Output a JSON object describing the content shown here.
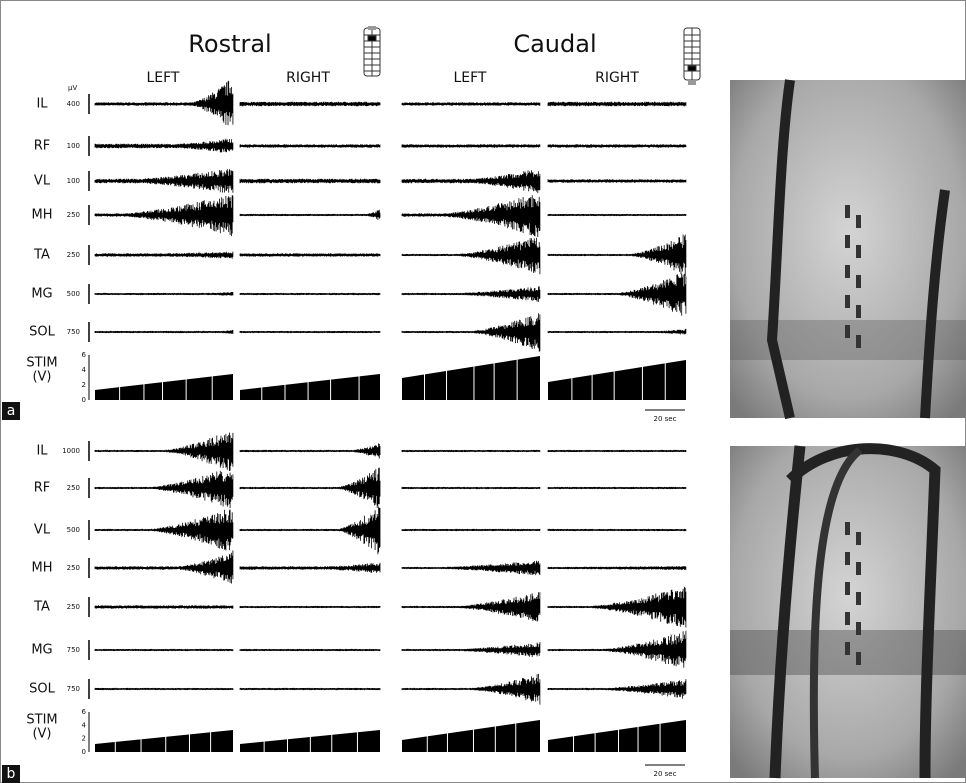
{
  "header": {
    "groups": [
      "Rostral",
      "Caudal"
    ],
    "sides": [
      "LEFT",
      "RIGHT",
      "LEFT",
      "RIGHT"
    ],
    "unit": "µV"
  },
  "panels": [
    {
      "label": "a",
      "rows": [
        {
          "muscle": "IL",
          "scale": "400"
        },
        {
          "muscle": "RF",
          "scale": "100"
        },
        {
          "muscle": "VL",
          "scale": "100"
        },
        {
          "muscle": "MH",
          "scale": "250"
        },
        {
          "muscle": "TA",
          "scale": "250"
        },
        {
          "muscle": "MG",
          "scale": "500"
        },
        {
          "muscle": "SOL",
          "scale": "750"
        }
      ],
      "stim": {
        "label": [
          "STIM",
          "(V)"
        ],
        "ticks": [
          "6",
          "4",
          "2",
          "0"
        ]
      },
      "time_scale": "20 sec"
    },
    {
      "label": "b",
      "rows": [
        {
          "muscle": "IL",
          "scale": "1000"
        },
        {
          "muscle": "RF",
          "scale": "250"
        },
        {
          "muscle": "VL",
          "scale": "500"
        },
        {
          "muscle": "MH",
          "scale": "250"
        },
        {
          "muscle": "TA",
          "scale": "250"
        },
        {
          "muscle": "MG",
          "scale": "750"
        },
        {
          "muscle": "SOL",
          "scale": "750"
        }
      ],
      "stim": {
        "label": [
          "STIM",
          "(V)"
        ],
        "ticks": [
          "6",
          "4",
          "2",
          "0"
        ]
      },
      "time_scale": "20 sec"
    }
  ]
}
